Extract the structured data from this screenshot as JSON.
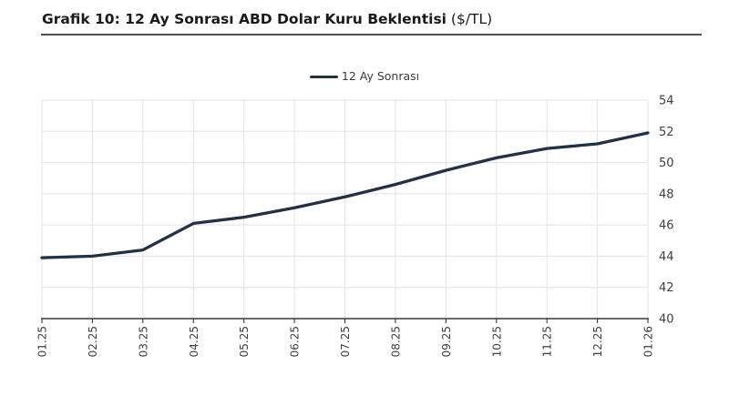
{
  "title": {
    "main": "Grafik 10: 12 Ay Sonrası ABD Dolar Kuru Beklentisi",
    "suffix": " ($/TL)"
  },
  "legend": {
    "label": "12 Ay Sonrası"
  },
  "colors": {
    "line": "#203246",
    "grid": "#e3e3e3",
    "axis": "#3a3a3a",
    "tick_label": "#3f3f3f",
    "title": "#1a1a1a",
    "title_rule": "#4f4f4f"
  },
  "chart_data": {
    "type": "line",
    "title": "Grafik 10: 12 Ay Sonrası ABD Dolar Kuru Beklentisi ($/TL)",
    "x": [
      "01.25",
      "02.25",
      "03.25",
      "04.25",
      "05.25",
      "06.25",
      "07.25",
      "08.25",
      "09.25",
      "10.25",
      "11.25",
      "12.25",
      "01.26"
    ],
    "series": [
      {
        "name": "12 Ay Sonrası",
        "values": [
          43.9,
          44.0,
          44.4,
          46.1,
          46.5,
          47.1,
          47.8,
          48.6,
          49.5,
          50.3,
          50.9,
          51.2,
          51.9
        ]
      }
    ],
    "xlabel": "",
    "ylabel": "",
    "ylim": [
      40,
      54
    ],
    "yticks": [
      40,
      42,
      44,
      46,
      48,
      50,
      52,
      54
    ],
    "y_axis_side": "right",
    "grid": true,
    "legend_position": "top-center"
  }
}
